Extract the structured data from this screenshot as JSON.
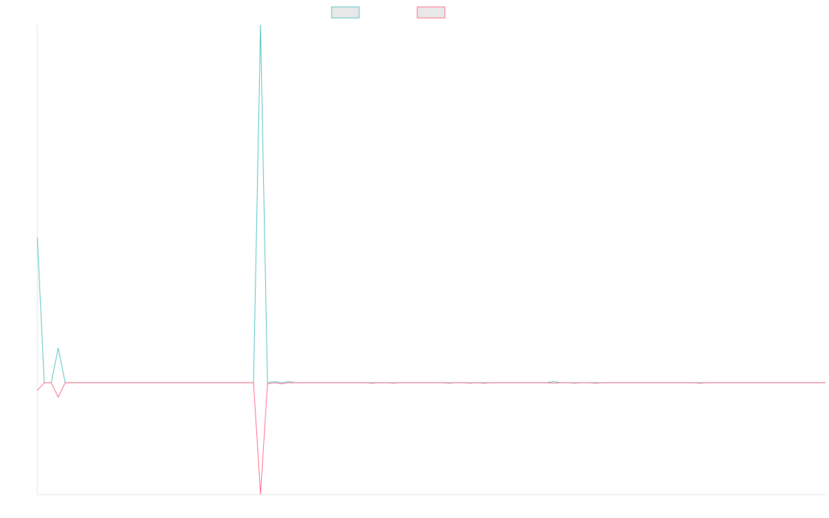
{
  "chart_data": {
    "type": "line",
    "title": "",
    "xlabel": "",
    "ylabel": "",
    "grid": false,
    "legend_position": "top-center",
    "x": [
      0,
      1,
      2,
      3,
      4,
      5,
      6,
      7,
      8,
      9,
      10,
      11,
      12,
      13,
      14,
      15,
      16,
      17,
      18,
      19,
      20,
      21,
      22,
      23,
      24,
      25,
      26,
      27,
      28,
      29,
      30,
      31,
      32,
      33,
      34,
      35,
      36,
      37,
      38,
      39,
      40,
      41,
      42,
      43,
      44,
      45,
      46,
      47,
      48,
      49,
      50,
      51,
      52,
      53,
      54,
      55,
      56,
      57,
      58,
      59,
      60,
      61,
      62,
      63,
      64,
      65,
      66,
      67,
      68,
      69,
      70,
      71,
      72,
      73,
      74,
      75,
      76,
      77,
      78,
      79,
      80,
      81,
      82,
      83,
      84,
      85,
      86,
      87,
      88,
      89,
      90,
      91,
      92,
      93,
      94,
      95,
      96,
      97,
      98,
      99,
      100,
      101,
      102,
      103,
      104,
      105,
      106,
      107,
      108,
      109,
      110,
      111,
      112,
      113
    ],
    "xlim": [
      0,
      113
    ],
    "ylim": [
      -1,
      3.2
    ],
    "series": [
      {
        "color": "#4bc0c0",
        "values": [
          1.3,
          0,
          0,
          0.31,
          0,
          0,
          0,
          0,
          0,
          0,
          0,
          0,
          0,
          0,
          0,
          0,
          0,
          0,
          0,
          0,
          0,
          0,
          0,
          0,
          0,
          0,
          0,
          0,
          0,
          0,
          0,
          0,
          3.2,
          0,
          0.01,
          0,
          0.01,
          0,
          0,
          0,
          0,
          0,
          0,
          0,
          0,
          0,
          0,
          0,
          0,
          0,
          0,
          0,
          0,
          0,
          0,
          0,
          0,
          0,
          0,
          0,
          0,
          0,
          0,
          0,
          0,
          0,
          0,
          0,
          0,
          0,
          0,
          0,
          0,
          0,
          0.01,
          0,
          0,
          0,
          0,
          0,
          0,
          0,
          0,
          0,
          0,
          0,
          0,
          0,
          0,
          0,
          0,
          0,
          0,
          0,
          0,
          0,
          0,
          0,
          0,
          0,
          0,
          0,
          0,
          0,
          0,
          0,
          0,
          0,
          0,
          0,
          0,
          0,
          0,
          0
        ]
      },
      {
        "color": "#ff6384",
        "values": [
          -0.07,
          0,
          0,
          -0.13,
          0,
          0,
          0,
          0,
          0,
          0,
          0,
          0,
          0,
          0,
          0,
          0,
          0,
          0,
          0,
          0,
          0,
          0,
          0,
          0,
          0,
          0,
          0,
          0,
          0,
          0,
          0,
          0,
          -1,
          -0.01,
          0,
          -0.01,
          0,
          0,
          0,
          0,
          0,
          0,
          0,
          0,
          0,
          0,
          0,
          0,
          -0.005,
          0,
          0,
          -0.005,
          0,
          0,
          0,
          0,
          0,
          0,
          0,
          -0.005,
          0,
          0,
          -0.005,
          0,
          -0.005,
          0,
          0,
          0,
          0,
          0,
          0,
          0,
          0,
          0,
          -0.005,
          0,
          0,
          -0.005,
          0,
          0,
          -0.005,
          0,
          0,
          0,
          0,
          0,
          0,
          0,
          0,
          0,
          0,
          0,
          0,
          0,
          0,
          -0.005,
          0,
          0,
          0,
          0,
          0,
          0,
          0,
          0,
          0,
          0,
          0,
          0,
          0,
          0,
          0,
          0,
          0,
          0
        ]
      }
    ]
  }
}
